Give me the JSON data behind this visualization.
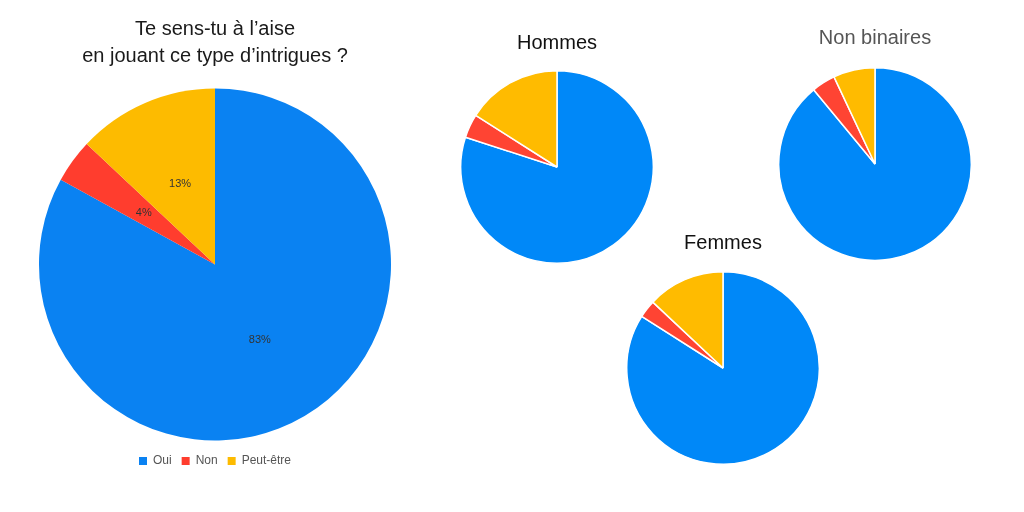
{
  "chart_data": [
    {
      "type": "pie",
      "title": "Te sens-tu à l’aise\nen jouant ce type d’intrigues ?",
      "categories": [
        "Oui",
        "Non",
        "Peut-être"
      ],
      "values": [
        83,
        4,
        13
      ],
      "colors": [
        "#0a82f2",
        "#ff3d2e",
        "#fdbb00"
      ],
      "value_labels": [
        "83%",
        "4%",
        "13%"
      ],
      "legend": "bottom"
    },
    {
      "type": "pie",
      "title": "Hommes",
      "categories": [
        null,
        null,
        null
      ],
      "values": [
        80,
        4,
        16
      ],
      "colors": [
        "#0088f8",
        "#ff4433",
        "#ffbb00"
      ]
    },
    {
      "type": "pie",
      "title": "Non binaires",
      "categories": [
        null,
        null,
        null
      ],
      "values": [
        89,
        4,
        7
      ],
      "colors": [
        "#0088f8",
        "#ff4433",
        "#ffbb00"
      ]
    },
    {
      "type": "pie",
      "title": "Femmes",
      "categories": [
        null,
        null,
        null
      ],
      "values": [
        84,
        3,
        13
      ],
      "colors": [
        "#0088f8",
        "#ff4433",
        "#ffbb00"
      ]
    }
  ]
}
